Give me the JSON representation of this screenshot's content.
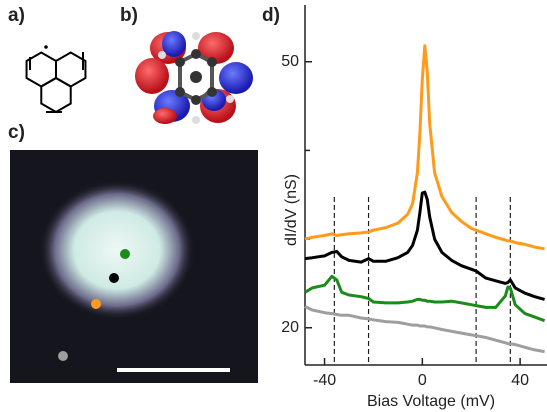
{
  "panel_labels": [
    "a)",
    "b)",
    "c)",
    "d)"
  ],
  "chart_data": {
    "type": "line",
    "ylabel": "dI/dV (nS)",
    "xlabel": "Bias Voltage (mV)",
    "xlim": [
      -48,
      51
    ],
    "xticks": [
      -40,
      0,
      40
    ],
    "ylim": [
      15.8,
      56.4
    ],
    "yticks": [
      20,
      50
    ],
    "yminor_ticks": [
      30,
      40
    ],
    "dashed_lines": [
      -36,
      -22,
      22,
      36
    ],
    "x": [
      -48,
      -45,
      -40,
      -37,
      -35,
      -33,
      -30,
      -25,
      -22,
      -20,
      -15,
      -10,
      -6,
      -4,
      -2,
      -1,
      0,
      1,
      2,
      3,
      5,
      8,
      12,
      16,
      20,
      22,
      26,
      30,
      34,
      35,
      36,
      38,
      42,
      46,
      50
    ],
    "series": [
      {
        "color": "#ff9a1a",
        "values": [
          30.0,
          30.2,
          30.4,
          30.6,
          30.4,
          30.5,
          30.6,
          30.7,
          30.8,
          31.0,
          31.3,
          31.8,
          32.8,
          34.0,
          37.5,
          42,
          48,
          51.8,
          49,
          43,
          37.5,
          34.8,
          33,
          32,
          31.2,
          31,
          30.6,
          30.2,
          29.9,
          29.8,
          29.8,
          29.6,
          29.4,
          29.1,
          28.9
        ]
      },
      {
        "color": "#000000",
        "values": [
          27.8,
          27.9,
          28.1,
          28.5,
          28.6,
          28.0,
          27.6,
          27.4,
          27.8,
          27.5,
          27.5,
          27.9,
          28.5,
          29.3,
          31,
          33,
          35.2,
          35.3,
          34.5,
          32.5,
          30,
          28.5,
          27.6,
          27.0,
          26.6,
          26.4,
          25.6,
          25.3,
          25.0,
          25.1,
          25.4,
          24.5,
          23.9,
          23.5,
          23.2
        ]
      },
      {
        "color": "#1a8c1a",
        "values": [
          24.0,
          24.5,
          24.8,
          25.8,
          25.4,
          24.0,
          23.7,
          23.5,
          23.3,
          22.9,
          22.8,
          22.8,
          22.9,
          23.0,
          23.2,
          23.2,
          23.1,
          23.1,
          23.0,
          23.0,
          22.9,
          22.9,
          23.0,
          22.8,
          22.6,
          22.5,
          22.3,
          22.3,
          23.6,
          24.6,
          24.5,
          22.6,
          21.6,
          21.2,
          20.8
        ]
      },
      {
        "color": "#9e9e9e",
        "values": [
          22.4,
          22.0,
          21.7,
          21.6,
          21.5,
          21.4,
          21.4,
          21.1,
          21.0,
          20.9,
          20.7,
          20.6,
          20.4,
          20.3,
          20.3,
          20.2,
          20.2,
          20.2,
          20.1,
          20.1,
          20.0,
          19.8,
          19.6,
          19.4,
          19.2,
          19.1,
          18.9,
          18.6,
          18.3,
          18.2,
          18.2,
          18.1,
          17.8,
          17.5,
          17.3
        ]
      }
    ]
  }
}
